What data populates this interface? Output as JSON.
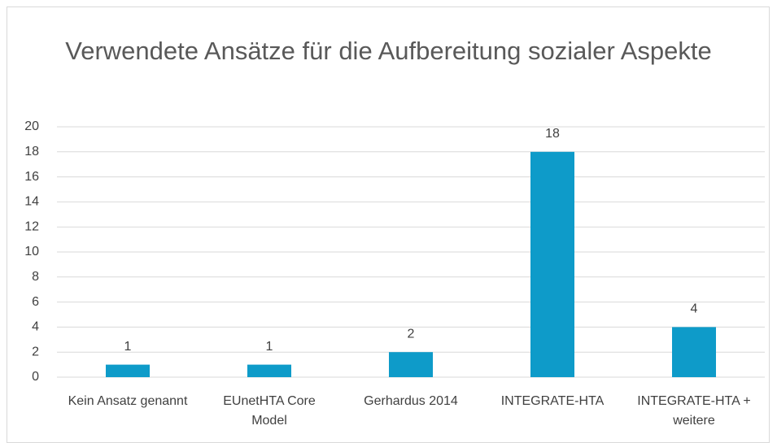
{
  "chart_data": {
    "type": "bar",
    "title": "Verwendete Ansätze für die Aufbereitung sozialer Aspekte",
    "categories": [
      "Kein Ansatz genannt",
      "EUnetHTA Core Model",
      "Gerhardus 2014",
      "INTEGRATE-HTA",
      "INTEGRATE-HTA + weitere"
    ],
    "values": [
      1,
      1,
      2,
      18,
      4
    ],
    "color": "#0e9bc9",
    "ylim": [
      0,
      20
    ],
    "yticks": [
      0,
      2,
      4,
      6,
      8,
      10,
      12,
      14,
      16,
      18,
      20
    ],
    "grid": true
  }
}
